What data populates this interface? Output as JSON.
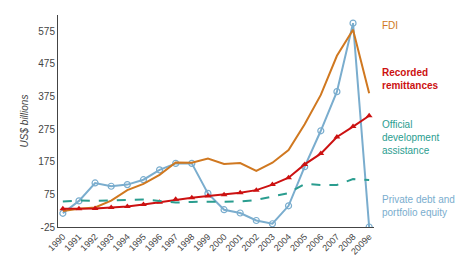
{
  "chart_data": {
    "type": "line",
    "ylabel": "US$ billions",
    "x": [
      1990,
      1991,
      1992,
      1993,
      1994,
      1995,
      1996,
      1997,
      1998,
      1999,
      2000,
      2001,
      2002,
      2003,
      2004,
      2005,
      2006,
      2007,
      2008,
      2009
    ],
    "series": [
      {
        "name": "Private debt and\nportfolio equity",
        "color": "#7aadce",
        "marker": "circle-open",
        "line_style": "solid",
        "values": [
          17,
          55,
          110,
          100,
          105,
          120,
          150,
          170,
          170,
          78,
          28,
          18,
          -5,
          -15,
          40,
          160,
          270,
          390,
          600,
          -25
        ]
      },
      {
        "name": "FDI",
        "color": "#d07820",
        "marker": "none",
        "line_style": "solid",
        "values": [
          24,
          31,
          35,
          56,
          88,
          107,
          135,
          173,
          172,
          185,
          168,
          171,
          147,
          172,
          211,
          290,
          380,
          500,
          580,
          385
        ]
      },
      {
        "name": "Recorded\nremittances",
        "color": "#cc1111",
        "marker": "triangle-up",
        "line_style": "solid",
        "values": [
          31,
          31,
          32,
          35,
          38,
          44,
          51,
          60,
          65,
          70,
          74,
          80,
          88,
          105,
          126,
          167,
          200,
          251,
          283,
          316
        ]
      },
      {
        "name": "Official\ndevelopment\nassistance",
        "color": "#2a9d8f",
        "marker": "none",
        "line_style": "dashed",
        "values": [
          53,
          56,
          55,
          56,
          56,
          59,
          55,
          50,
          52,
          53,
          53,
          53,
          58,
          68,
          79,
          107,
          104,
          104,
          122,
          119
        ]
      }
    ],
    "xlim": [
      1989.7,
      2009.3
    ],
    "xticks": [
      1990,
      1991,
      1992,
      1993,
      1994,
      1995,
      1996,
      1997,
      1998,
      1999,
      2000,
      2001,
      2002,
      2003,
      2004,
      2005,
      2006,
      2007,
      2008,
      {
        "value": 2009,
        "label": "2009e"
      }
    ],
    "ylim": [
      -25,
      625
    ],
    "yticks": [
      -25,
      75,
      175,
      275,
      375,
      475,
      575
    ],
    "grid": false
  }
}
